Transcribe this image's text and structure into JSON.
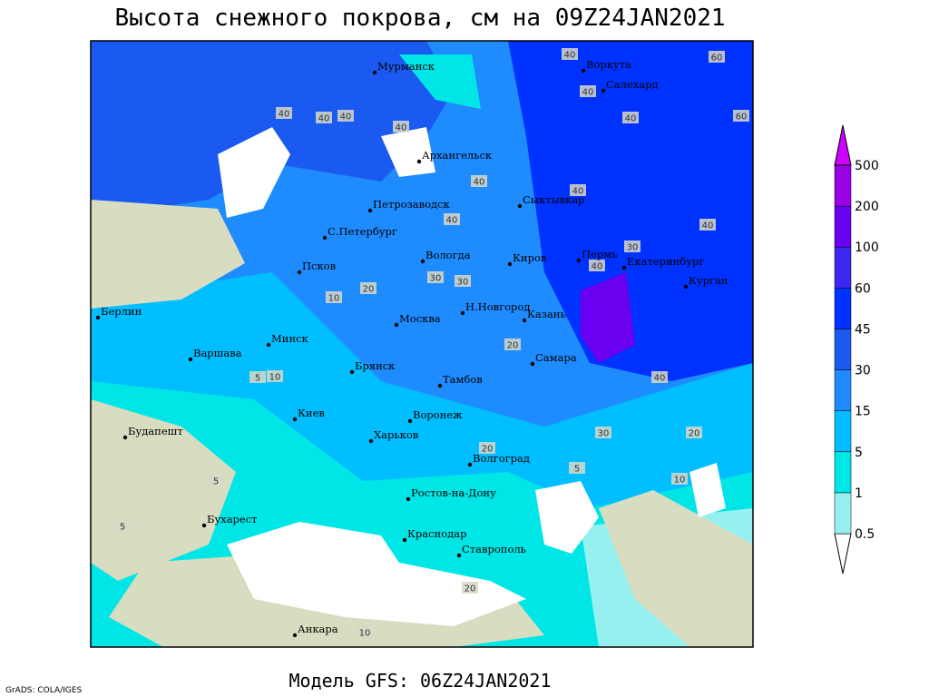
{
  "title": "Высота снежного покрова, см на 09Z24JAN2021",
  "footer": "Модель GFS: 06Z24JAN2021",
  "credit": "GrADS: COLA/IGES",
  "cities": [
    "Мурманск",
    "Воркута",
    "Салехард",
    "Архангельск",
    "Сыктывкар",
    "Петрозаводск",
    "С.Петербург",
    "Вологда",
    "Киров",
    "Пермь",
    "Екатеринбург",
    "Курган",
    "Псков",
    "Берлин",
    "Москва",
    "Н.Новгород",
    "Казань",
    "Минск",
    "Варшава",
    "Самара",
    "Брянск",
    "Тамбов",
    "Киев",
    "Воронеж",
    "Будапешт",
    "Харьков",
    "Волгоград",
    "Ростов-на-Дону",
    "Бухарест",
    "Краснодар",
    "Ставрополь",
    "Анкара"
  ],
  "contour_labels": [
    60,
    60,
    40,
    40,
    40,
    40,
    40,
    40,
    40,
    40,
    40,
    40,
    30,
    40,
    40,
    20,
    10,
    30,
    30,
    5,
    10,
    20,
    20,
    40,
    30,
    20,
    10,
    5,
    5,
    5,
    20,
    10
  ],
  "legend": {
    "levels": [
      0.5,
      1,
      5,
      15,
      30,
      45,
      60,
      100,
      200,
      500
    ],
    "colors": [
      "#ffffff",
      "#96f0f0",
      "#00e6e6",
      "#00beff",
      "#1e8cff",
      "#1a5af0",
      "#0032ff",
      "#3c28f0",
      "#6a00f0",
      "#9a00e6",
      "#cc00ff"
    ]
  }
}
